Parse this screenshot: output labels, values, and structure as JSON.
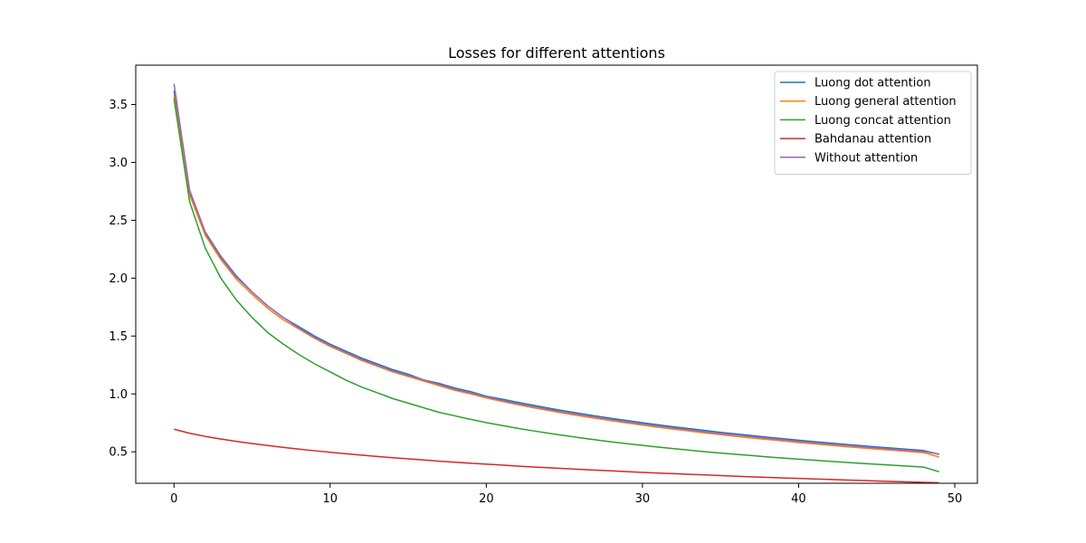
{
  "chart_data": {
    "type": "line",
    "title": "Losses for different attentions",
    "xlabel": "",
    "ylabel": "",
    "xlim": [
      -2.45,
      51.45
    ],
    "ylim": [
      0.228,
      3.84
    ],
    "x_ticks": [
      0,
      10,
      20,
      30,
      40,
      50
    ],
    "y_ticks": [
      0.5,
      1.0,
      1.5,
      2.0,
      2.5,
      3.0,
      3.5
    ],
    "y_tick_labels": [
      "0.5",
      "1.0",
      "1.5",
      "2.0",
      "2.5",
      "3.0",
      "3.5"
    ],
    "legend_position": "upper right",
    "grid": false,
    "x": [
      0,
      1,
      2,
      3,
      4,
      5,
      6,
      7,
      8,
      9,
      10,
      11,
      12,
      13,
      14,
      15,
      16,
      17,
      18,
      19,
      20,
      21,
      22,
      23,
      24,
      25,
      26,
      27,
      28,
      29,
      30,
      31,
      32,
      33,
      34,
      35,
      36,
      37,
      38,
      39,
      40,
      41,
      42,
      43,
      44,
      45,
      46,
      47,
      48,
      49
    ],
    "series": [
      {
        "name": "Luong dot attention",
        "color": "#1f77b4",
        "values": [
          3.62,
          2.74,
          2.39,
          2.18,
          2.01,
          1.88,
          1.76,
          1.66,
          1.58,
          1.5,
          1.43,
          1.37,
          1.31,
          1.26,
          1.21,
          1.17,
          1.12,
          1.09,
          1.05,
          1.02,
          0.98,
          0.955,
          0.928,
          0.902,
          0.877,
          0.854,
          0.831,
          0.81,
          0.789,
          0.77,
          0.751,
          0.733,
          0.716,
          0.7,
          0.684,
          0.668,
          0.654,
          0.64,
          0.626,
          0.613,
          0.6,
          0.588,
          0.576,
          0.564,
          0.553,
          0.542,
          0.532,
          0.521,
          0.511,
          0.478
        ]
      },
      {
        "name": "Luong general attention",
        "color": "#ff7f0e",
        "values": [
          3.58,
          2.72,
          2.37,
          2.16,
          1.99,
          1.86,
          1.74,
          1.64,
          1.56,
          1.48,
          1.41,
          1.35,
          1.29,
          1.24,
          1.19,
          1.15,
          1.11,
          1.07,
          1.03,
          1.0,
          0.965,
          0.935,
          0.907,
          0.881,
          0.856,
          0.832,
          0.81,
          0.789,
          0.768,
          0.749,
          0.73,
          0.712,
          0.695,
          0.679,
          0.663,
          0.648,
          0.633,
          0.619,
          0.606,
          0.593,
          0.58,
          0.568,
          0.556,
          0.545,
          0.534,
          0.523,
          0.513,
          0.503,
          0.493,
          0.455
        ]
      },
      {
        "name": "Luong concat attention",
        "color": "#2ca02c",
        "values": [
          3.55,
          2.66,
          2.26,
          2.0,
          1.81,
          1.66,
          1.53,
          1.43,
          1.34,
          1.26,
          1.19,
          1.12,
          1.06,
          1.01,
          0.96,
          0.92,
          0.88,
          0.84,
          0.81,
          0.78,
          0.752,
          0.727,
          0.703,
          0.681,
          0.66,
          0.64,
          0.621,
          0.603,
          0.586,
          0.57,
          0.555,
          0.541,
          0.527,
          0.514,
          0.501,
          0.489,
          0.478,
          0.467,
          0.456,
          0.446,
          0.436,
          0.427,
          0.418,
          0.409,
          0.4,
          0.392,
          0.384,
          0.376,
          0.368,
          0.327
        ]
      },
      {
        "name": "Bahdanau attention",
        "color": "#d62728",
        "values": [
          0.695,
          0.66,
          0.633,
          0.61,
          0.59,
          0.571,
          0.554,
          0.538,
          0.523,
          0.509,
          0.496,
          0.483,
          0.471,
          0.46,
          0.449,
          0.439,
          0.429,
          0.419,
          0.41,
          0.401,
          0.393,
          0.385,
          0.377,
          0.369,
          0.362,
          0.355,
          0.348,
          0.341,
          0.335,
          0.329,
          0.322,
          0.316,
          0.311,
          0.305,
          0.3,
          0.294,
          0.289,
          0.284,
          0.279,
          0.274,
          0.27,
          0.265,
          0.261,
          0.256,
          0.252,
          0.248,
          0.244,
          0.24,
          0.236,
          0.232
        ]
      },
      {
        "name": "Without attention",
        "color": "#9467bd",
        "values": [
          3.68,
          2.76,
          2.4,
          2.19,
          2.02,
          1.88,
          1.76,
          1.66,
          1.57,
          1.49,
          1.42,
          1.36,
          1.3,
          1.25,
          1.2,
          1.16,
          1.12,
          1.08,
          1.04,
          1.01,
          0.975,
          0.945,
          0.917,
          0.891,
          0.866,
          0.843,
          0.821,
          0.8,
          0.779,
          0.76,
          0.741,
          0.723,
          0.706,
          0.69,
          0.674,
          0.659,
          0.645,
          0.631,
          0.617,
          0.604,
          0.591,
          0.579,
          0.567,
          0.556,
          0.545,
          0.534,
          0.523,
          0.513,
          0.503,
          0.48
        ]
      }
    ]
  }
}
